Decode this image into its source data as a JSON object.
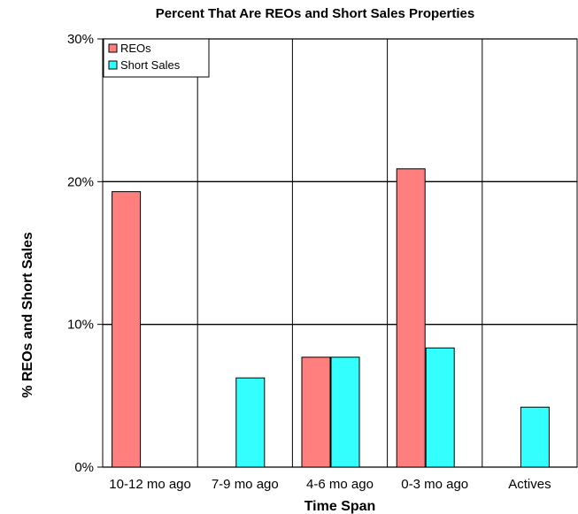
{
  "chart_data": {
    "type": "bar",
    "title": "Percent That Are REOs and Short Sales Properties",
    "x_label": "Time Span",
    "y_label": "% REOs and Short Sales",
    "categories": [
      "10-12 mo ago",
      "7-9 mo ago",
      "4-6 mo ago",
      "0-3 mo ago",
      "Actives"
    ],
    "series": [
      {
        "name": "REOs",
        "color": "#ff7f7f",
        "values": [
          19.3,
          0,
          7.7,
          20.9,
          0
        ]
      },
      {
        "name": "Short Sales",
        "color": "#33ffff",
        "values": [
          0,
          6.25,
          7.7,
          8.35,
          4.2
        ]
      }
    ],
    "ylim": [
      0,
      30
    ],
    "yticks": [
      {
        "value": 0,
        "label": "0%"
      },
      {
        "value": 10,
        "label": "10%"
      },
      {
        "value": 20,
        "label": "20%"
      },
      {
        "value": 30,
        "label": "30%"
      }
    ],
    "grid": true,
    "legend": "top-left"
  }
}
